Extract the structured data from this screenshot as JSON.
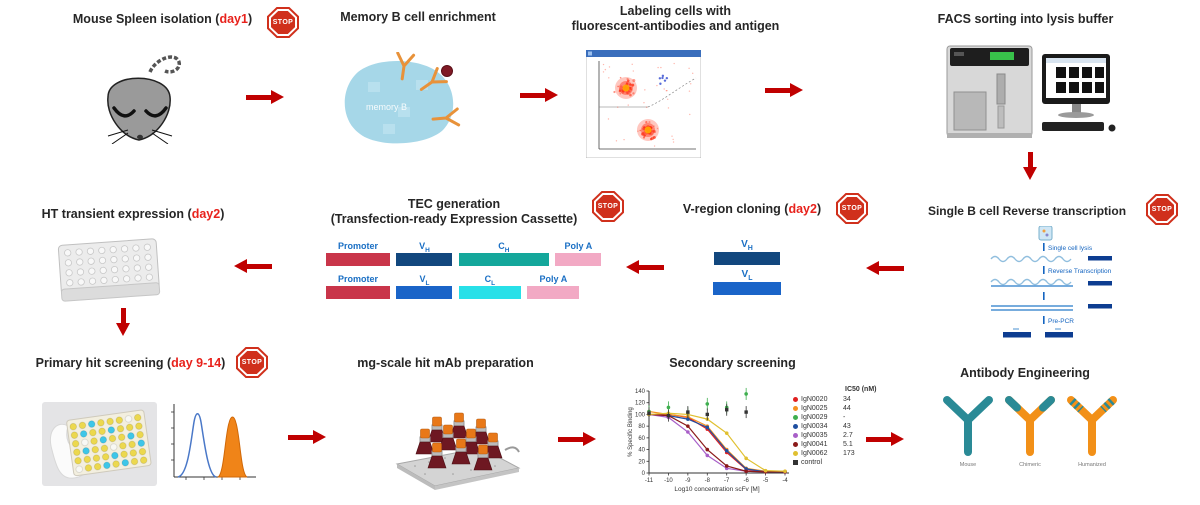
{
  "accent": {
    "arrow_red": "#c00000",
    "day_red": "#e8221c",
    "stop_red": "#d0301c"
  },
  "stop_label": "STOP",
  "steps": {
    "mouse": {
      "pre": "Mouse Spleen isolation (",
      "day": "day1",
      "post": ")"
    },
    "memory": {
      "pre": "Memory B cell enrichment",
      "day": "",
      "post": "",
      "cell_label": "memory B"
    },
    "labeling": {
      "line1": "Labeling cells with",
      "line2": "fluorescent-antibodies and antigen"
    },
    "facs": {
      "pre": "FACS sorting into lysis buffer",
      "day": "",
      "post": ""
    },
    "rt": {
      "pre": "Single B cell Reverse transcription",
      "day": "",
      "post": "",
      "substeps": [
        "Single cell lysis",
        "Reverse Transcription",
        "Pre-PCR"
      ]
    },
    "vregion": {
      "pre": "V-region cloning (",
      "day": "day2",
      "post": ")",
      "heavy": {
        "base": "V",
        "sub": "H",
        "color": "#12477e"
      },
      "light": {
        "base": "V",
        "sub": "L",
        "color": "#1a64c8"
      }
    },
    "tec": {
      "line1": "TEC generation",
      "line2": "(Transfection-ready Expression Cassette)",
      "row1": [
        {
          "n": "Promoter",
          "s": "",
          "color": "#c9354a"
        },
        {
          "n": "V",
          "s": "H",
          "color": "#12477e"
        },
        {
          "n": "C",
          "s": "H",
          "color": "#14a79b"
        },
        {
          "n": "Poly A",
          "s": "",
          "color": "#f2a9c4"
        }
      ],
      "row2": [
        {
          "n": "Promoter",
          "s": "",
          "color": "#c9354a"
        },
        {
          "n": "V",
          "s": "L",
          "color": "#1a64c8"
        },
        {
          "n": "C",
          "s": "L",
          "color": "#28e0e8"
        },
        {
          "n": "Poly A",
          "s": "",
          "color": "#f2a9c4"
        }
      ]
    },
    "ht": {
      "pre": "HT transient expression (",
      "day": "day2",
      "post": ")"
    },
    "primary": {
      "pre": "Primary hit screening (",
      "day": "day 9-14",
      "post": ")"
    },
    "mgscale": {
      "pre": "mg-scale hit mAb preparation",
      "day": "",
      "post": ""
    },
    "secondary": {
      "pre": "Secondary screening",
      "day": "",
      "post": ""
    },
    "engineering": {
      "pre": "Antibody Engineering",
      "day": "",
      "post": "",
      "labels": [
        "Mouse",
        "Chimeric",
        "Humanized"
      ],
      "colors": {
        "mouse_teal": "#2a8a96",
        "human_orange": "#f29018"
      }
    }
  },
  "chart_data": {
    "type": "line",
    "title": "Secondary screening",
    "xlabel": "Log10 concentration scFv [M]",
    "ylabel": "% Specific Binding",
    "x": [
      -11,
      -10,
      -9,
      -8,
      -7,
      -6,
      -5,
      -4
    ],
    "xlim": [
      -11.5,
      -3.5
    ],
    "ylim": [
      0,
      140
    ],
    "yticks": [
      0,
      20,
      40,
      60,
      80,
      100,
      120,
      140
    ],
    "legend_title": "IC50 (nM)",
    "legend_position": "right",
    "series": [
      {
        "name": "IgN0020",
        "ic50": "34",
        "color": "#e02020",
        "marker": "circle",
        "values": [
          100,
          100,
          95,
          75,
          35,
          6,
          2,
          2
        ]
      },
      {
        "name": "IgN0025",
        "ic50": "44",
        "color": "#f59120",
        "marker": "circle",
        "values": [
          105,
          100,
          96,
          80,
          40,
          8,
          3,
          3
        ]
      },
      {
        "name": "IgN0029",
        "ic50": "-",
        "color": "#3faf4f",
        "marker": "circle",
        "error": true,
        "values": [
          105,
          112,
          102,
          118,
          112,
          135,
          null,
          null
        ]
      },
      {
        "name": "IgN0034",
        "ic50": "43",
        "color": "#1f4fa0",
        "marker": "circle",
        "values": [
          100,
          98,
          92,
          78,
          38,
          7,
          2,
          2
        ]
      },
      {
        "name": "IgN0035",
        "ic50": "2.7",
        "color": "#a85fc8",
        "marker": "circle",
        "values": [
          100,
          95,
          70,
          30,
          8,
          3,
          2,
          2
        ]
      },
      {
        "name": "IgN0041",
        "ic50": "5.1",
        "color": "#8b1a1a",
        "marker": "circle",
        "values": [
          100,
          98,
          80,
          40,
          12,
          3,
          2,
          2
        ]
      },
      {
        "name": "IgN0062",
        "ic50": "173",
        "color": "#e0c030",
        "marker": "circle",
        "values": [
          100,
          102,
          100,
          92,
          68,
          25,
          4,
          3
        ]
      },
      {
        "name": "control",
        "ic50": "",
        "color": "#333333",
        "marker": "square",
        "error": true,
        "values": [
          102,
          98,
          104,
          100,
          108,
          104,
          null,
          null
        ]
      }
    ]
  }
}
